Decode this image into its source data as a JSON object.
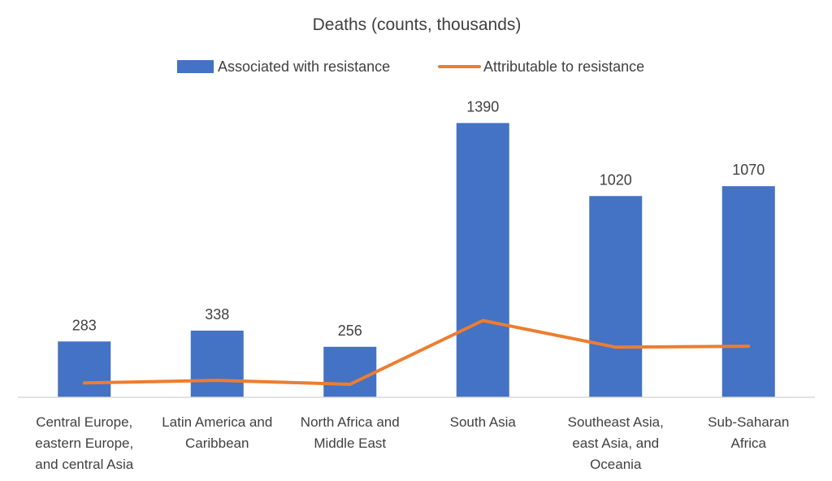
{
  "chart_data": {
    "type": "bar",
    "title": "Deaths (counts, thousands)",
    "categories": [
      [
        "Central Europe,",
        "eastern Europe,",
        "and central Asia"
      ],
      [
        "Latin America and",
        "Caribbean"
      ],
      [
        "North Africa and",
        "Middle East"
      ],
      [
        "South Asia"
      ],
      [
        "Southeast Asia,",
        "east Asia, and",
        "Oceania"
      ],
      [
        "Sub-Saharan",
        "Africa"
      ]
    ],
    "series": [
      {
        "name": "Associated with resistance",
        "type": "bar",
        "color": "#4472C4",
        "values": [
          283,
          338,
          256,
          1390,
          1020,
          1070
        ],
        "labels": [
          "283",
          "338",
          "256",
          "1390",
          "1020",
          "1070"
        ]
      },
      {
        "name": "Attributable to resistance",
        "type": "line",
        "color": "#ED7D31",
        "values": [
          73,
          86,
          66,
          389,
          254,
          259
        ]
      }
    ],
    "ylim": [
      0,
      1400
    ],
    "legend": "top-center",
    "grid": false
  }
}
